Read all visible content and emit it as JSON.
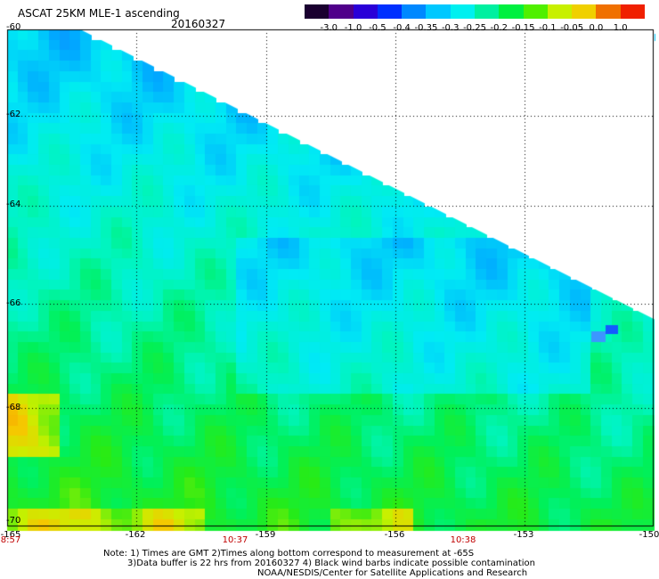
{
  "header": {
    "title": "ASCAT 25KM MLE-1 ascending",
    "date": "20160327"
  },
  "colorbar": {
    "labels": [
      "-3.0",
      "-1.0",
      "-0.5",
      "-0.4",
      "-0.35",
      "-0.3",
      "-0.25",
      "-0.2",
      "-0.15",
      "-0.1",
      "-0.05",
      "0.0",
      "1.0"
    ],
    "colors": [
      "#1a0030",
      "#50008a",
      "#2a00d8",
      "#0030ff",
      "#0088ff",
      "#00c8ff",
      "#00f0f0",
      "#00f0a0",
      "#00f040",
      "#50f000",
      "#c8f000",
      "#f0d000",
      "#f07000",
      "#f02000"
    ]
  },
  "map": {
    "lat_labels": [
      "-60",
      "-62",
      "-64",
      "-66",
      "-68",
      "-70"
    ],
    "lon_labels": [
      "-165",
      "-162",
      "-159",
      "-156",
      "-153",
      "-150"
    ],
    "time_labels": [
      "8:57",
      "10:37",
      "10:38"
    ]
  },
  "notes": {
    "line1": "Note: 1) Times are GMT 2)Times along bottom correspond to measurement at -65S",
    "line2": "3)Data buffer is 22 hrs from 20160327 4) Black wind barbs indicate possible contamination",
    "line3": "NOAA/NESDIS/Center for Satellite Applications and Research"
  }
}
